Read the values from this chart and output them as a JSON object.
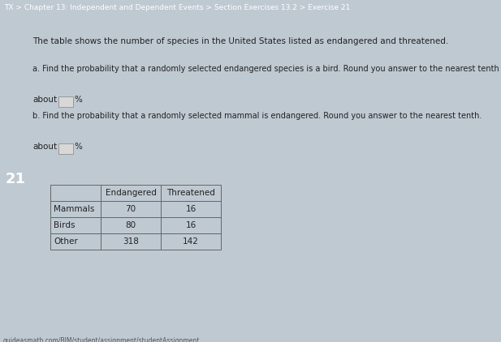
{
  "header_text": "TX > Chapter 13: Independent and Dependent Events > Section Exercises 13.2 > Exercise 21",
  "header_bg": "#6b86a0",
  "header_text_color": "#ffffff",
  "body_bg": "#bfc9d2",
  "sidebar_bg": "#3a7fc1",
  "sidebar_text": "21",
  "sidebar_text_color": "#ffffff",
  "intro_text": "The table shows the number of species in the United States listed as endangered and threatened.",
  "part_a_label": "a. Find the probability that a randomly selected endangered species is a bird. Round you answer to the nearest tenth",
  "part_b_label": "b. Find the probability that a randomly selected mammal is endangered. Round you answer to the nearest tenth.",
  "about_text": "about",
  "percent_text": "%",
  "footer_text": "guideasmath.com/BIM/student/assignment/studentAssignment",
  "table_headers": [
    "",
    "Endangered",
    "Threatened"
  ],
  "table_rows": [
    [
      "Mammals",
      "70",
      "16"
    ],
    [
      "Birds",
      "80",
      "16"
    ],
    [
      "Other",
      "318",
      "142"
    ]
  ],
  "main_text_color": "#222222",
  "table_border_color": "#666666",
  "input_box_bg": "#d8d8d8",
  "input_box_border": "#999999",
  "font_size_header": 6.5,
  "font_size_body": 7.5,
  "font_size_table": 7.5,
  "font_size_sidebar": 13,
  "font_size_footer": 5.5
}
